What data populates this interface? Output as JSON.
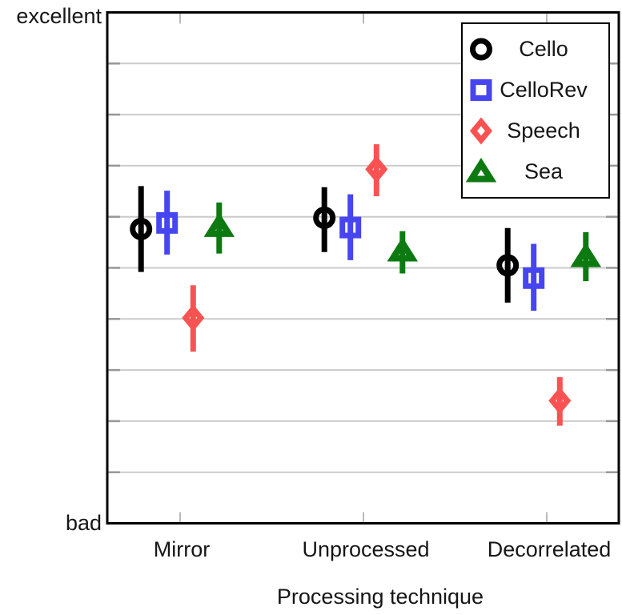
{
  "figure": {
    "background": "#ffffff",
    "colors": {
      "axis": "#000000",
      "grid": "#cbcbcb",
      "y_tick": "#979797",
      "x_tick": "#a8a8a8",
      "text": "#161616"
    }
  },
  "chart_data": {
    "type": "scatter",
    "title": "",
    "xlabel": "Processing technique",
    "ylabel": "",
    "categories": [
      "Mirror",
      "Unprocessed",
      "Decorrelated"
    ],
    "y_axis": {
      "top_label": "excellent",
      "bottom_label": "bad",
      "min": 0,
      "max": 1,
      "gridline_step": 0.1,
      "grid": true
    },
    "legend": {
      "position": "top-right",
      "border": true
    },
    "series": [
      {
        "name": "Cello",
        "marker": "circle",
        "color": "#000000",
        "means": [
          0.576,
          0.598,
          0.505
        ],
        "err_lo": [
          0.492,
          0.531,
          0.432
        ],
        "err_hi": [
          0.66,
          0.658,
          0.578
        ]
      },
      {
        "name": "CelloRev",
        "marker": "square",
        "color": "#4745f0",
        "means": [
          0.588,
          0.579,
          0.48
        ],
        "err_lo": [
          0.526,
          0.515,
          0.416
        ],
        "err_hi": [
          0.651,
          0.644,
          0.547
        ]
      },
      {
        "name": "Speech",
        "marker": "diamond",
        "color": "#f85352",
        "means": [
          0.402,
          0.693,
          0.24
        ],
        "err_lo": [
          0.336,
          0.64,
          0.191
        ],
        "err_hi": [
          0.466,
          0.742,
          0.286
        ]
      },
      {
        "name": "Sea",
        "marker": "triangle",
        "color": "#0c7a10",
        "means": [
          0.581,
          0.533,
          0.522
        ],
        "err_lo": [
          0.528,
          0.489,
          0.474
        ],
        "err_hi": [
          0.628,
          0.572,
          0.57
        ]
      }
    ]
  }
}
